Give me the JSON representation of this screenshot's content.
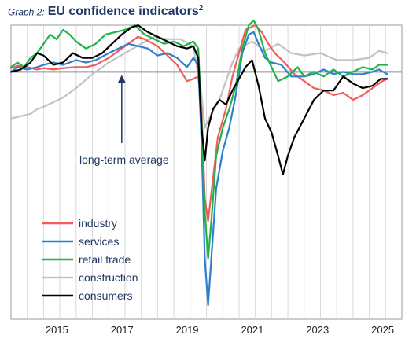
{
  "title": {
    "prefix": "Graph 2:",
    "main": "EU confidence indicators",
    "sup": "2"
  },
  "chart_data": {
    "type": "line",
    "xlim": [
      2014.0,
      2026.0
    ],
    "ylim": [
      -53,
      10
    ],
    "long_term_average": 0,
    "annotation": "long-term average",
    "x_ticks": [
      {
        "label": "2015",
        "x": 2015.0
      },
      {
        "label": "2017",
        "x": 2017.0
      },
      {
        "label": "2019",
        "x": 2019.0
      },
      {
        "label": "2021",
        "x": 2021.0
      },
      {
        "label": "2023",
        "x": 2023.0
      },
      {
        "label": "2025",
        "x": 2025.0
      }
    ],
    "grid_x": [
      2014.5,
      2015.0,
      2015.5,
      2016.0,
      2016.5,
      2017.0,
      2017.5,
      2018.0,
      2018.5,
      2019.0,
      2019.5,
      2020.0,
      2020.5,
      2021.0,
      2021.5,
      2022.0,
      2022.5,
      2023.0,
      2023.5,
      2024.0,
      2024.5,
      2025.0,
      2025.5
    ],
    "legend_position": "bottom-left",
    "colors": {
      "industry": "#f25c5c",
      "services": "#2f7fcf",
      "retail": "#1fb34a",
      "construction": "#c2c2c2",
      "consumers": "#000000",
      "avg_line": "#8c8c8c",
      "annotation": "#1f3864"
    },
    "series": [
      {
        "name": "construction",
        "color": "#c2c2c2",
        "points": [
          [
            2014.0,
            -10.0
          ],
          [
            2014.3,
            -9.5
          ],
          [
            2014.6,
            -9.0
          ],
          [
            2014.8,
            -8.0
          ],
          [
            2015.0,
            -7.5
          ],
          [
            2015.3,
            -6.5
          ],
          [
            2015.6,
            -5.5
          ],
          [
            2016.0,
            -3.5
          ],
          [
            2016.5,
            -0.5
          ],
          [
            2017.0,
            2.0
          ],
          [
            2017.5,
            4.0
          ],
          [
            2018.0,
            6.0
          ],
          [
            2018.4,
            7.5
          ],
          [
            2018.8,
            7.0
          ],
          [
            2019.2,
            7.0
          ],
          [
            2019.6,
            5.5
          ],
          [
            2019.85,
            -5.0
          ],
          [
            2019.95,
            -12.0
          ],
          [
            2020.15,
            -9.0
          ],
          [
            2020.4,
            -6.0
          ],
          [
            2020.8,
            2.0
          ],
          [
            2021.0,
            5.0
          ],
          [
            2021.4,
            6.5
          ],
          [
            2021.8,
            4.5
          ],
          [
            2022.2,
            6.0
          ],
          [
            2022.6,
            4.0
          ],
          [
            2023.0,
            3.5
          ],
          [
            2023.5,
            4.0
          ],
          [
            2024.0,
            2.5
          ],
          [
            2024.5,
            2.5
          ],
          [
            2025.0,
            3.0
          ],
          [
            2025.3,
            4.5
          ],
          [
            2025.55,
            4.0
          ]
        ]
      },
      {
        "name": "industry",
        "color": "#f25c5c",
        "points": [
          [
            2014.0,
            0.8
          ],
          [
            2014.2,
            1.3
          ],
          [
            2014.5,
            1.0
          ],
          [
            2014.8,
            0.5
          ],
          [
            2015.0,
            0.8
          ],
          [
            2015.3,
            0.5
          ],
          [
            2015.6,
            0.8
          ],
          [
            2016.0,
            1.0
          ],
          [
            2016.3,
            1.0
          ],
          [
            2016.6,
            1.5
          ],
          [
            2017.0,
            3.0
          ],
          [
            2017.3,
            4.5
          ],
          [
            2017.6,
            6.0
          ],
          [
            2017.9,
            7.5
          ],
          [
            2018.1,
            7.0
          ],
          [
            2018.5,
            5.5
          ],
          [
            2018.8,
            3.5
          ],
          [
            2019.1,
            1.5
          ],
          [
            2019.4,
            -2.0
          ],
          [
            2019.6,
            -1.5
          ],
          [
            2019.75,
            -1.0
          ],
          [
            2019.85,
            -8.0
          ],
          [
            2019.95,
            -27.0
          ],
          [
            2020.05,
            -32.0
          ],
          [
            2020.15,
            -26.0
          ],
          [
            2020.35,
            -14.0
          ],
          [
            2020.6,
            -8.0
          ],
          [
            2020.8,
            -1.0
          ],
          [
            2021.0,
            4.0
          ],
          [
            2021.2,
            9.0
          ],
          [
            2021.5,
            10.0
          ],
          [
            2021.7,
            8.5
          ],
          [
            2021.9,
            6.0
          ],
          [
            2022.1,
            4.0
          ],
          [
            2022.4,
            2.0
          ],
          [
            2022.7,
            -0.5
          ],
          [
            2023.0,
            -2.0
          ],
          [
            2023.3,
            -3.5
          ],
          [
            2023.6,
            -4.0
          ],
          [
            2023.9,
            -5.0
          ],
          [
            2024.2,
            -4.5
          ],
          [
            2024.5,
            -6.0
          ],
          [
            2024.8,
            -5.0
          ],
          [
            2025.1,
            -3.5
          ],
          [
            2025.4,
            -2.0
          ],
          [
            2025.55,
            -1.5
          ]
        ]
      },
      {
        "name": "services",
        "color": "#2f7fcf",
        "points": [
          [
            2014.0,
            0.0
          ],
          [
            2014.2,
            1.0
          ],
          [
            2014.5,
            0.5
          ],
          [
            2014.8,
            1.0
          ],
          [
            2015.0,
            1.5
          ],
          [
            2015.3,
            2.0
          ],
          [
            2015.6,
            1.5
          ],
          [
            2016.0,
            2.5
          ],
          [
            2016.3,
            2.0
          ],
          [
            2016.6,
            2.5
          ],
          [
            2017.0,
            4.0
          ],
          [
            2017.3,
            5.0
          ],
          [
            2017.6,
            6.0
          ],
          [
            2017.9,
            5.5
          ],
          [
            2018.2,
            5.0
          ],
          [
            2018.5,
            3.5
          ],
          [
            2018.8,
            4.0
          ],
          [
            2019.1,
            3.0
          ],
          [
            2019.4,
            1.0
          ],
          [
            2019.6,
            3.0
          ],
          [
            2019.75,
            1.5
          ],
          [
            2019.85,
            -15.0
          ],
          [
            2019.95,
            -40.0
          ],
          [
            2020.05,
            -50.0
          ],
          [
            2020.15,
            -40.0
          ],
          [
            2020.3,
            -25.0
          ],
          [
            2020.5,
            -17.0
          ],
          [
            2020.7,
            -12.0
          ],
          [
            2020.9,
            -5.0
          ],
          [
            2021.1,
            4.0
          ],
          [
            2021.3,
            8.0
          ],
          [
            2021.45,
            8.5
          ],
          [
            2021.6,
            6.0
          ],
          [
            2021.8,
            3.0
          ],
          [
            2022.0,
            2.0
          ],
          [
            2022.3,
            1.5
          ],
          [
            2022.6,
            -1.0
          ],
          [
            2023.0,
            -1.0
          ],
          [
            2023.3,
            -0.5
          ],
          [
            2023.6,
            0.5
          ],
          [
            2023.9,
            -0.5
          ],
          [
            2024.2,
            0.0
          ],
          [
            2024.5,
            -0.5
          ],
          [
            2024.8,
            -0.5
          ],
          [
            2025.1,
            0.0
          ],
          [
            2025.3,
            0.5
          ],
          [
            2025.55,
            -0.5
          ]
        ]
      },
      {
        "name": "retail trade",
        "color": "#1fb34a",
        "points": [
          [
            2014.0,
            1.0
          ],
          [
            2014.2,
            2.0
          ],
          [
            2014.4,
            1.0
          ],
          [
            2014.6,
            3.0
          ],
          [
            2014.8,
            4.0
          ],
          [
            2015.0,
            6.0
          ],
          [
            2015.2,
            8.0
          ],
          [
            2015.4,
            7.0
          ],
          [
            2015.6,
            9.0
          ],
          [
            2015.8,
            8.0
          ],
          [
            2016.0,
            6.5
          ],
          [
            2016.3,
            5.0
          ],
          [
            2016.6,
            6.0
          ],
          [
            2016.9,
            8.0
          ],
          [
            2017.2,
            8.5
          ],
          [
            2017.5,
            9.0
          ],
          [
            2017.8,
            10.0
          ],
          [
            2018.1,
            8.0
          ],
          [
            2018.4,
            7.0
          ],
          [
            2018.7,
            6.0
          ],
          [
            2019.0,
            6.5
          ],
          [
            2019.3,
            5.5
          ],
          [
            2019.6,
            6.5
          ],
          [
            2019.75,
            5.0
          ],
          [
            2019.85,
            -10.0
          ],
          [
            2019.95,
            -30.0
          ],
          [
            2020.05,
            -40.0
          ],
          [
            2020.15,
            -32.0
          ],
          [
            2020.3,
            -18.0
          ],
          [
            2020.5,
            -12.0
          ],
          [
            2020.7,
            -8.0
          ],
          [
            2020.9,
            -3.0
          ],
          [
            2021.1,
            5.0
          ],
          [
            2021.3,
            10.0
          ],
          [
            2021.45,
            11.0
          ],
          [
            2021.6,
            9.0
          ],
          [
            2021.8,
            4.0
          ],
          [
            2022.0,
            1.0
          ],
          [
            2022.2,
            -2.0
          ],
          [
            2022.5,
            -1.0
          ],
          [
            2022.8,
            1.0
          ],
          [
            2023.0,
            -1.0
          ],
          [
            2023.3,
            0.0
          ],
          [
            2023.6,
            -1.0
          ],
          [
            2023.9,
            0.5
          ],
          [
            2024.2,
            -1.0
          ],
          [
            2024.5,
            0.0
          ],
          [
            2024.8,
            1.0
          ],
          [
            2025.1,
            0.5
          ],
          [
            2025.3,
            1.5
          ],
          [
            2025.55,
            1.5
          ]
        ]
      },
      {
        "name": "consumers",
        "color": "#000000",
        "points": [
          [
            2014.0,
            0.0
          ],
          [
            2014.3,
            0.5
          ],
          [
            2014.6,
            2.0
          ],
          [
            2014.8,
            4.0
          ],
          [
            2015.0,
            3.5
          ],
          [
            2015.3,
            1.5
          ],
          [
            2015.6,
            2.0
          ],
          [
            2015.9,
            4.0
          ],
          [
            2016.2,
            3.0
          ],
          [
            2016.5,
            3.0
          ],
          [
            2016.8,
            4.0
          ],
          [
            2017.1,
            6.0
          ],
          [
            2017.4,
            8.0
          ],
          [
            2017.7,
            9.5
          ],
          [
            2017.9,
            10.0
          ],
          [
            2018.2,
            8.5
          ],
          [
            2018.5,
            7.5
          ],
          [
            2018.8,
            6.5
          ],
          [
            2019.1,
            5.5
          ],
          [
            2019.4,
            5.0
          ],
          [
            2019.6,
            5.5
          ],
          [
            2019.75,
            3.0
          ],
          [
            2019.85,
            -12.0
          ],
          [
            2019.95,
            -19.0
          ],
          [
            2020.05,
            -12.0
          ],
          [
            2020.2,
            -8.0
          ],
          [
            2020.4,
            -6.0
          ],
          [
            2020.6,
            -7.0
          ],
          [
            2020.8,
            -4.0
          ],
          [
            2021.0,
            -1.5
          ],
          [
            2021.2,
            1.0
          ],
          [
            2021.4,
            2.5
          ],
          [
            2021.6,
            -3.0
          ],
          [
            2021.8,
            -10.0
          ],
          [
            2022.0,
            -13.0
          ],
          [
            2022.2,
            -18.0
          ],
          [
            2022.35,
            -22.0
          ],
          [
            2022.5,
            -18.0
          ],
          [
            2022.7,
            -14.0
          ],
          [
            2023.0,
            -10.0
          ],
          [
            2023.3,
            -6.0
          ],
          [
            2023.6,
            -4.0
          ],
          [
            2023.9,
            -4.0
          ],
          [
            2024.2,
            -1.0
          ],
          [
            2024.5,
            -2.5
          ],
          [
            2024.8,
            -3.5
          ],
          [
            2025.1,
            -3.0
          ],
          [
            2025.35,
            -1.5
          ],
          [
            2025.55,
            -1.5
          ]
        ]
      }
    ],
    "legend": [
      {
        "label": "industry",
        "color": "#f25c5c"
      },
      {
        "label": "services",
        "color": "#2f7fcf"
      },
      {
        "label": "retail trade",
        "color": "#1fb34a"
      },
      {
        "label": "construction",
        "color": "#c2c2c2"
      },
      {
        "label": "consumers",
        "color": "#000000"
      }
    ]
  }
}
